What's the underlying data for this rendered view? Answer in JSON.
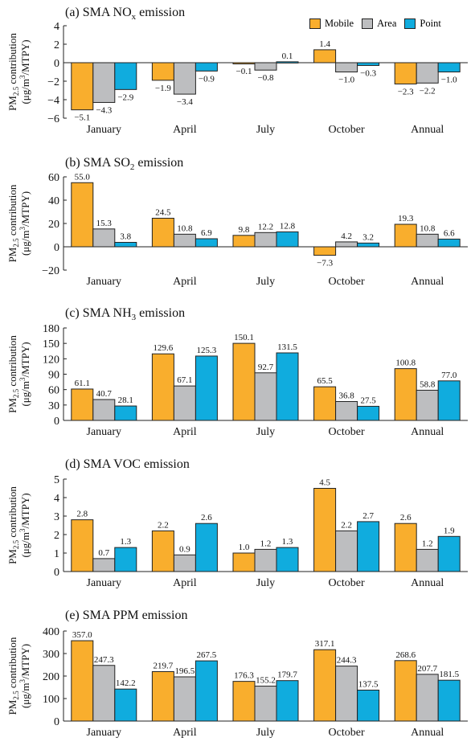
{
  "legend": {
    "series": [
      {
        "name": "Mobile",
        "color": "#F9AE2D"
      },
      {
        "name": "Area",
        "color": "#BDBEC0"
      },
      {
        "name": "Point",
        "color": "#10ACDE"
      }
    ]
  },
  "shared_ylabel": {
    "line1": "PM2.5 contribution",
    "line1_base": "PM",
    "line1_sub": "2.5",
    "line1_rest": " contribution",
    "line2": "(μg/m3/MTPY)",
    "line2_pre": "(μg/m",
    "line2_sup": "3",
    "line2_post": "/MTPY)"
  },
  "chart_data": [
    {
      "type": "bar",
      "title": "(a) SMA NOx emission",
      "title_parts": {
        "pre": "(a) SMA NO",
        "sub": "x",
        "post": " emission"
      },
      "categories": [
        "January",
        "April",
        "July",
        "October",
        "Annual"
      ],
      "series": [
        {
          "name": "Mobile",
          "values": [
            -5.1,
            -1.9,
            -0.1,
            1.4,
            -2.3
          ]
        },
        {
          "name": "Area",
          "values": [
            -4.3,
            -3.4,
            -0.8,
            -1.0,
            -2.2
          ]
        },
        {
          "name": "Point",
          "values": [
            -2.9,
            -0.9,
            0.1,
            -0.3,
            -1.0
          ]
        }
      ],
      "ylim": [
        -6,
        4
      ],
      "yticks": [
        -6,
        -4,
        -2,
        0,
        2,
        4
      ],
      "ylabel": "PM2.5 contribution (μg/m3/MTPY)",
      "grid": false,
      "legend": "top-right"
    },
    {
      "type": "bar",
      "title": "(b) SMA SO2 emission",
      "title_parts": {
        "pre": "(b) SMA SO",
        "sub": "2",
        "post": " emission"
      },
      "categories": [
        "January",
        "April",
        "July",
        "October",
        "Annual"
      ],
      "series": [
        {
          "name": "Mobile",
          "values": [
            55.0,
            24.5,
            9.8,
            -7.3,
            19.3
          ]
        },
        {
          "name": "Area",
          "values": [
            15.3,
            10.8,
            12.2,
            4.2,
            10.8
          ]
        },
        {
          "name": "Point",
          "values": [
            3.8,
            6.9,
            12.8,
            3.2,
            6.6
          ]
        }
      ],
      "ylim": [
        -20,
        60
      ],
      "yticks": [
        -20,
        0,
        20,
        40,
        60
      ],
      "ylabel": "PM2.5 contribution (μg/m3/MTPY)",
      "grid": false
    },
    {
      "type": "bar",
      "title": "(c) SMA NH3 emission",
      "title_parts": {
        "pre": "(c) SMA NH",
        "sub": "3",
        "post": " emission"
      },
      "categories": [
        "January",
        "April",
        "July",
        "October",
        "Annual"
      ],
      "series": [
        {
          "name": "Mobile",
          "values": [
            61.1,
            129.6,
            150.1,
            65.5,
            100.8
          ]
        },
        {
          "name": "Area",
          "values": [
            40.7,
            67.1,
            92.7,
            36.8,
            58.8
          ]
        },
        {
          "name": "Point",
          "values": [
            28.1,
            125.3,
            131.5,
            27.5,
            77.0
          ]
        }
      ],
      "ylim": [
        0,
        180
      ],
      "yticks": [
        0,
        30,
        60,
        90,
        120,
        150,
        180
      ],
      "ylabel": "PM2.5 contribution (μg/m3/MTPY)",
      "grid": false
    },
    {
      "type": "bar",
      "title": "(d) SMA VOC emission",
      "title_parts": {
        "pre": "(d) SMA VOC emission",
        "sub": "",
        "post": ""
      },
      "categories": [
        "January",
        "April",
        "July",
        "October",
        "Annual"
      ],
      "series": [
        {
          "name": "Mobile",
          "values": [
            2.8,
            2.2,
            1.0,
            4.5,
            2.6
          ]
        },
        {
          "name": "Area",
          "values": [
            0.7,
            0.9,
            1.2,
            2.2,
            1.2
          ]
        },
        {
          "name": "Point",
          "values": [
            1.3,
            2.6,
            1.3,
            2.7,
            1.9
          ]
        }
      ],
      "ylim": [
        0,
        5
      ],
      "yticks": [
        0,
        1,
        2,
        3,
        4,
        5
      ],
      "ylabel": "PM2.5 contribution (μg/m3/MTPY)",
      "grid": false
    },
    {
      "type": "bar",
      "title": "(e) SMA PPM emission",
      "title_parts": {
        "pre": "(e) SMA PPM emission",
        "sub": "",
        "post": ""
      },
      "categories": [
        "January",
        "April",
        "July",
        "October",
        "Annual"
      ],
      "series": [
        {
          "name": "Mobile",
          "values": [
            357.0,
            219.7,
            176.3,
            317.1,
            268.6
          ]
        },
        {
          "name": "Area",
          "values": [
            247.3,
            196.5,
            155.2,
            244.3,
            207.7
          ]
        },
        {
          "name": "Point",
          "values": [
            142.2,
            267.5,
            179.7,
            137.5,
            181.5
          ]
        }
      ],
      "ylim": [
        0,
        400
      ],
      "yticks": [
        0,
        100,
        200,
        300,
        400
      ],
      "ylabel": "PM2.5 contribution (μg/m3/MTPY)",
      "grid": false
    }
  ]
}
